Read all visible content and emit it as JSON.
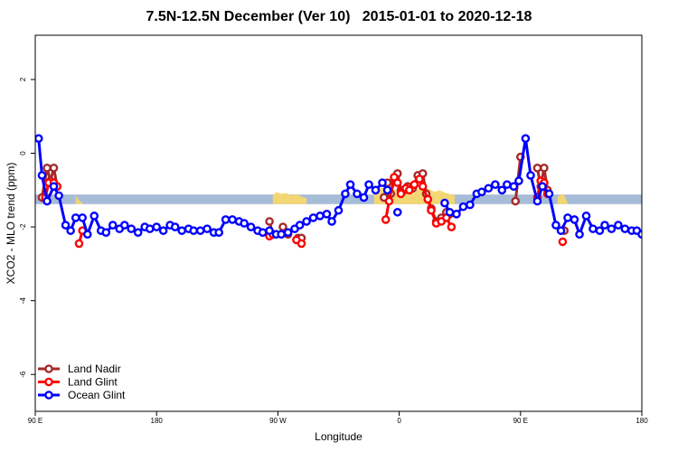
{
  "chart_data": {
    "type": "line",
    "title": "7.5N-12.5N December (Ver 10)   2015-01-01 to 2020-12-18",
    "xlabel": "Longitude",
    "ylabel": "XCO2 - MLO trend (ppm)",
    "xlim": [
      90,
      450
    ],
    "ylim": [
      -7,
      3.2
    ],
    "x_ticks": [
      {
        "value": 90,
        "label": "90 E"
      },
      {
        "value": 162,
        "label": "180"
      },
      {
        "value": 234,
        "label": "90 W"
      },
      {
        "value": 306,
        "label": "0"
      },
      {
        "value": 378,
        "label": "90 E"
      },
      {
        "value": 450,
        "label": "180"
      }
    ],
    "y_ticks": [
      {
        "value": 2,
        "label": "2"
      },
      {
        "value": 0,
        "label": "0"
      },
      {
        "value": -2,
        "label": "-2"
      },
      {
        "value": -4,
        "label": "-4"
      },
      {
        "value": -6,
        "label": "-6"
      }
    ],
    "band": {
      "y_low": -1.38,
      "y_high": -1.12,
      "color": "#a7bcd6"
    },
    "land_mask_color": "#f5d76e",
    "land_segments": [
      [
        [
          114,
          -1.15
        ],
        [
          116,
          -1.28
        ],
        [
          118,
          -1.35
        ]
      ],
      [
        [
          231,
          -1.15
        ],
        [
          233,
          -1.05
        ],
        [
          236,
          -1.1
        ],
        [
          239,
          -1.08
        ],
        [
          242,
          -1.15
        ],
        [
          245,
          -1.1
        ],
        [
          248,
          -1.18
        ],
        [
          251,
          -1.22
        ]
      ],
      [
        [
          291,
          -1.05
        ],
        [
          294,
          -0.92
        ],
        [
          297,
          -0.95
        ],
        [
          300,
          -1.0
        ],
        [
          303,
          -0.98
        ],
        [
          306,
          -1.0
        ],
        [
          309,
          -0.95
        ],
        [
          312,
          -0.97
        ],
        [
          315,
          -1.02
        ],
        [
          318,
          -0.95
        ],
        [
          321,
          -0.9
        ],
        [
          324,
          -0.97
        ],
        [
          327,
          -1.05
        ],
        [
          330,
          -1.0
        ],
        [
          333,
          -1.07
        ],
        [
          336,
          -1.1
        ],
        [
          339,
          -1.15
        ]
      ],
      [
        [
          400,
          -1.2
        ],
        [
          402,
          -1.1
        ],
        [
          404,
          -1.15
        ],
        [
          406,
          -1.35
        ]
      ]
    ],
    "legend_position": "bottom-left",
    "series": [
      {
        "name": "Land Nadir",
        "color": "#a52a2a",
        "segments": [
          [
            [
              94,
              -1.2
            ],
            [
              97,
              -0.4
            ],
            [
              99,
              -0.75
            ],
            [
              101,
              -0.4
            ],
            [
              103,
              -0.9
            ]
          ],
          [
            [
              229,
              -1.85
            ],
            [
              231,
              -2.2
            ]
          ],
          [
            [
              237,
              -2.0
            ],
            [
              240,
              -2.2
            ]
          ],
          [
            [
              246,
              -2.3
            ],
            [
              248,
              -2.3
            ]
          ],
          [
            [
              297,
              -1.2
            ],
            [
              299,
              -0.8
            ],
            [
              301,
              -1.1
            ],
            [
              303,
              -0.75
            ],
            [
              305,
              -0.55
            ],
            [
              307,
              -1.0
            ],
            [
              309,
              -1.0
            ],
            [
              311,
              -0.9
            ],
            [
              314,
              -0.95
            ],
            [
              317,
              -0.6
            ],
            [
              320,
              -0.55
            ],
            [
              322,
              -1.1
            ],
            [
              325,
              -1.5
            ],
            [
              328,
              -1.85
            ],
            [
              331,
              -1.75
            ],
            [
              334,
              -1.6
            ],
            [
              336,
              -1.65
            ]
          ],
          [
            [
              375,
              -1.3
            ],
            [
              378,
              -0.1
            ]
          ],
          [
            [
              388,
              -0.4
            ],
            [
              390,
              -0.9
            ],
            [
              392,
              -0.4
            ],
            [
              394,
              -1.0
            ]
          ],
          [
            [
              404,
              -2.1
            ]
          ]
        ]
      },
      {
        "name": "Land Glint",
        "color": "#ff0000",
        "segments": [
          [
            [
              96,
              -1.2
            ],
            [
              98,
              -0.8
            ],
            [
              101,
              -0.8
            ],
            [
              103,
              -0.9
            ]
          ],
          [
            [
              116,
              -2.45
            ],
            [
              118,
              -2.1
            ]
          ],
          [
            [
              229,
              -2.25
            ],
            [
              231,
              -2.2
            ]
          ],
          [
            [
              245,
              -2.35
            ],
            [
              248,
              -2.45
            ]
          ],
          [
            [
              298,
              -1.8
            ],
            [
              300,
              -1.3
            ],
            [
              303,
              -0.65
            ],
            [
              305,
              -0.8
            ],
            [
              307,
              -1.1
            ],
            [
              310,
              -0.95
            ],
            [
              312,
              -1.0
            ],
            [
              315,
              -0.85
            ],
            [
              318,
              -0.7
            ],
            [
              320,
              -0.9
            ],
            [
              323,
              -1.25
            ],
            [
              325,
              -1.55
            ],
            [
              328,
              -1.9
            ],
            [
              331,
              -1.85
            ],
            [
              334,
              -1.75
            ],
            [
              337,
              -2.0
            ]
          ],
          [
            [
              388,
              -1.2
            ],
            [
              390,
              -0.75
            ],
            [
              392,
              -0.8
            ],
            [
              394,
              -1.1
            ]
          ],
          [
            [
              403,
              -2.4
            ]
          ]
        ]
      },
      {
        "name": "Ocean Glint",
        "color": "#0000ff",
        "segments": [
          [
            [
              92,
              0.4
            ],
            [
              94,
              -0.6
            ],
            [
              97,
              -1.3
            ],
            [
              101,
              -0.9
            ],
            [
              104,
              -1.15
            ],
            [
              108,
              -1.95
            ],
            [
              111,
              -2.1
            ],
            [
              114,
              -1.75
            ],
            [
              118,
              -1.75
            ],
            [
              121,
              -2.2
            ],
            [
              125,
              -1.7
            ],
            [
              129,
              -2.1
            ],
            [
              132,
              -2.15
            ],
            [
              136,
              -1.95
            ],
            [
              140,
              -2.05
            ],
            [
              143,
              -1.95
            ],
            [
              147,
              -2.05
            ],
            [
              151,
              -2.15
            ],
            [
              155,
              -2.0
            ],
            [
              158,
              -2.05
            ],
            [
              162,
              -2.0
            ],
            [
              166,
              -2.1
            ],
            [
              170,
              -1.95
            ],
            [
              173,
              -2.0
            ],
            [
              177,
              -2.1
            ],
            [
              181,
              -2.05
            ],
            [
              184,
              -2.1
            ],
            [
              188,
              -2.1
            ],
            [
              192,
              -2.05
            ],
            [
              196,
              -2.15
            ],
            [
              199,
              -2.15
            ],
            [
              203,
              -1.8
            ],
            [
              207,
              -1.8
            ],
            [
              211,
              -1.85
            ],
            [
              214,
              -1.9
            ],
            [
              218,
              -2.0
            ],
            [
              222,
              -2.1
            ],
            [
              225,
              -2.15
            ],
            [
              229,
              -2.1
            ],
            [
              233,
              -2.2
            ],
            [
              236,
              -2.2
            ],
            [
              240,
              -2.15
            ],
            [
              244,
              -2.05
            ],
            [
              247,
              -1.95
            ],
            [
              251,
              -1.85
            ],
            [
              255,
              -1.75
            ],
            [
              259,
              -1.7
            ],
            [
              263,
              -1.65
            ],
            [
              266,
              -1.85
            ],
            [
              270,
              -1.55
            ],
            [
              274,
              -1.1
            ],
            [
              277,
              -0.85
            ],
            [
              281,
              -1.1
            ],
            [
              285,
              -1.2
            ],
            [
              288,
              -0.85
            ],
            [
              292,
              -1.0
            ],
            [
              296,
              -0.8
            ],
            [
              299,
              -1.0
            ]
          ],
          [
            [
              305,
              -1.6
            ]
          ],
          [
            [
              333,
              -1.35
            ],
            [
              336,
              -1.6
            ],
            [
              340,
              -1.65
            ],
            [
              344,
              -1.45
            ],
            [
              348,
              -1.4
            ],
            [
              352,
              -1.1
            ],
            [
              355,
              -1.05
            ],
            [
              359,
              -0.95
            ],
            [
              363,
              -0.85
            ],
            [
              367,
              -1.0
            ],
            [
              370,
              -0.85
            ],
            [
              374,
              -0.9
            ],
            [
              377,
              -0.75
            ],
            [
              381,
              0.4
            ],
            [
              384,
              -0.6
            ],
            [
              388,
              -1.3
            ],
            [
              391,
              -0.9
            ],
            [
              395,
              -1.1
            ],
            [
              399,
              -1.95
            ],
            [
              402,
              -2.1
            ],
            [
              406,
              -1.75
            ],
            [
              410,
              -1.8
            ],
            [
              413,
              -2.2
            ],
            [
              417,
              -1.7
            ],
            [
              421,
              -2.05
            ],
            [
              425,
              -2.1
            ],
            [
              428,
              -1.95
            ],
            [
              432,
              -2.05
            ],
            [
              436,
              -1.95
            ],
            [
              440,
              -2.05
            ],
            [
              444,
              -2.1
            ],
            [
              447,
              -2.1
            ],
            [
              450,
              -2.2
            ]
          ]
        ]
      }
    ]
  }
}
